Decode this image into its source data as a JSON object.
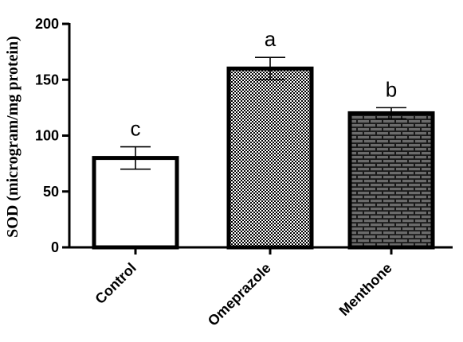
{
  "chart_data": {
    "type": "bar",
    "title": "",
    "xlabel": "",
    "ylabel": "SOD (microgram/mg protein)",
    "ylim": [
      0,
      200
    ],
    "yticks": [
      0,
      50,
      100,
      150,
      200
    ],
    "categories": [
      "Control",
      "Omeprazole",
      "Menthone"
    ],
    "values": [
      80,
      160,
      120
    ],
    "error": [
      10,
      10,
      5
    ],
    "significance": [
      "c",
      "a",
      "b"
    ],
    "fills": [
      "white",
      "checkerboard",
      "brick"
    ],
    "colors": {
      "bar_edge": "#000000",
      "checker": "#000000",
      "brick_fill": "#6b6b6b",
      "brick_mortar": "#1a1a1a"
    },
    "grid": false,
    "legend": "none"
  }
}
